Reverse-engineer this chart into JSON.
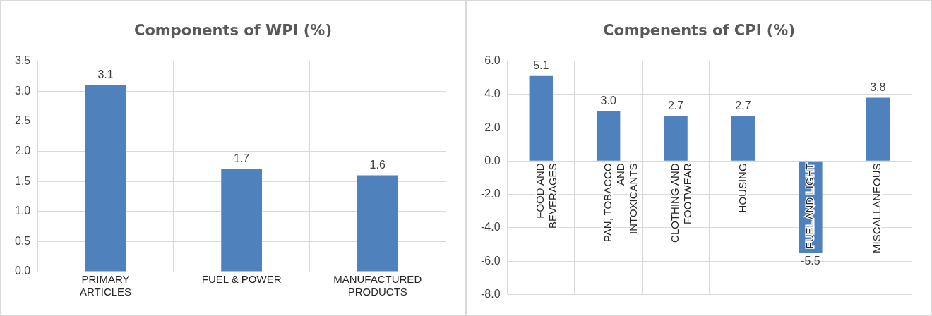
{
  "chart_data": [
    {
      "type": "bar",
      "title": "Components of WPI (%)",
      "categories": [
        "PRIMARY ARTICLES",
        "FUEL & POWER",
        "MANUFACTURED PRODUCTS"
      ],
      "values": [
        3.1,
        1.7,
        1.6
      ],
      "color": "#4f81bd",
      "data_labels": true,
      "ylim": [
        0,
        3.5
      ],
      "yticks": [
        {
          "value": 0,
          "label": "0.0"
        },
        {
          "value": 0.5,
          "label": "0.5"
        },
        {
          "value": 1,
          "label": "1.0"
        },
        {
          "value": 1.5,
          "label": "1.5"
        },
        {
          "value": 2,
          "label": "2.0"
        },
        {
          "value": 2.5,
          "label": "2.5"
        },
        {
          "value": 3,
          "label": "3.0"
        },
        {
          "value": 3.5,
          "label": "3.5"
        }
      ],
      "grid": true,
      "legend": false
    },
    {
      "type": "bar",
      "title": "Compenents of CPI (%)",
      "categories": [
        "FOOD AND BEVERAGES",
        "PAN, TOBACCO AND INTOXICANTS",
        "CLOTHING AND FOOTWEAR",
        "HOUSING",
        "FUEL AND LIGHT",
        "MISCALLANEOUS"
      ],
      "values": [
        5.1,
        3.0,
        2.7,
        2.7,
        -5.5,
        3.8
      ],
      "value_labels": [
        "5.1",
        "3.0",
        "2.7",
        "2.7",
        "-5.5",
        "3.8"
      ],
      "color": "#4f81bd",
      "ylim": [
        -8,
        6
      ],
      "yticks": [
        {
          "value": -8,
          "label": "-8.0"
        },
        {
          "value": -6,
          "label": "-6.0"
        },
        {
          "value": -4,
          "label": "-4.0"
        },
        {
          "value": -2,
          "label": "-2.0"
        },
        {
          "value": 0,
          "label": "0.0"
        },
        {
          "value": 2,
          "label": "2.0"
        },
        {
          "value": 4,
          "label": "4.0"
        },
        {
          "value": 6,
          "label": "6.0"
        }
      ],
      "grid": true,
      "legend": false
    }
  ]
}
